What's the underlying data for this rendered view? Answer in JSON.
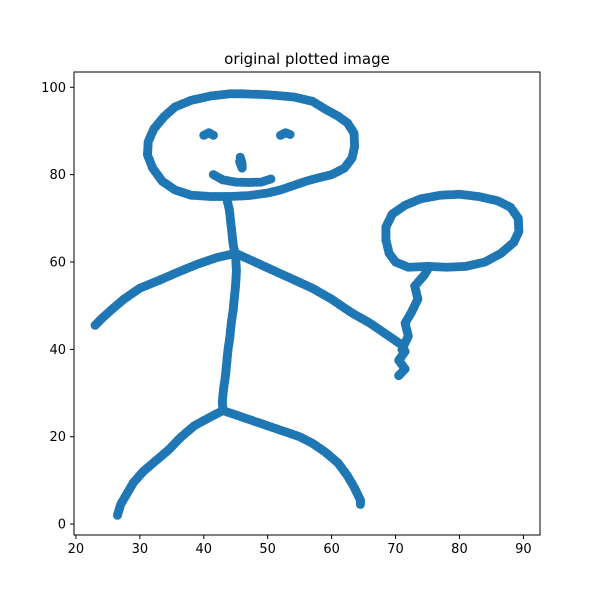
{
  "chart_data": {
    "type": "scatter",
    "title": "original plotted image",
    "xlabel": "",
    "ylabel": "",
    "xlim": [
      19.7,
      92.6
    ],
    "ylim": [
      -2.5,
      103.5
    ],
    "xticks": [
      20,
      30,
      40,
      50,
      60,
      70,
      80,
      90
    ],
    "yticks": [
      0,
      20,
      40,
      60,
      80,
      100
    ],
    "grid": false,
    "marker_color": "#1f77b4",
    "series": [
      {
        "strokes": [
          {
            "part": "head",
            "points": [
              [
                46,
                98.5
              ],
              [
                50,
                98.3
              ],
              [
                54,
                97.8
              ],
              [
                57,
                96.8
              ],
              [
                59,
                95
              ],
              [
                61,
                93.4
              ],
              [
                62.5,
                91.8
              ],
              [
                63.5,
                89.5
              ],
              [
                63.6,
                86.5
              ],
              [
                63.2,
                83.8
              ],
              [
                62,
                81.5
              ],
              [
                60,
                80
              ],
              [
                58,
                79.3
              ],
              [
                56,
                78.5
              ],
              [
                54,
                77.5
              ],
              [
                52,
                76.5
              ],
              [
                50,
                75.8
              ],
              [
                47,
                75.2
              ],
              [
                44,
                75
              ],
              [
                41,
                75
              ],
              [
                38,
                75.3
              ],
              [
                35.5,
                76.5
              ],
              [
                33.5,
                78.5
              ],
              [
                32,
                81.5
              ],
              [
                31.2,
                84.5
              ],
              [
                31.3,
                87.5
              ],
              [
                32.2,
                90.5
              ],
              [
                33.8,
                93.3
              ],
              [
                35.5,
                95.5
              ],
              [
                38,
                97
              ],
              [
                41,
                98
              ],
              [
                44,
                98.5
              ],
              [
                46,
                98.5
              ]
            ]
          },
          {
            "part": "left-eye",
            "points": [
              [
                40,
                89
              ],
              [
                40.8,
                89.6
              ],
              [
                41.5,
                89
              ]
            ]
          },
          {
            "part": "right-eye",
            "points": [
              [
                52,
                89
              ],
              [
                52.8,
                89.6
              ],
              [
                53.5,
                89.2
              ]
            ]
          },
          {
            "part": "nose",
            "points": [
              [
                45.7,
                84
              ],
              [
                46,
                82.5
              ],
              [
                46,
                81.5
              ],
              [
                45.6,
                83
              ]
            ]
          },
          {
            "part": "mouth",
            "points": [
              [
                41.5,
                80
              ],
              [
                43,
                78.8
              ],
              [
                45,
                78.3
              ],
              [
                47,
                78.2
              ],
              [
                49,
                78.3
              ],
              [
                50.5,
                79
              ]
            ]
          },
          {
            "part": "neck-and-torso",
            "points": [
              [
                43.5,
                75
              ],
              [
                44,
                72
              ],
              [
                44.3,
                68
              ],
              [
                44.6,
                64
              ],
              [
                45,
                61
              ],
              [
                45.1,
                58
              ],
              [
                45,
                55
              ],
              [
                44.8,
                52
              ],
              [
                44.6,
                49
              ],
              [
                44.3,
                46
              ],
              [
                44.1,
                43
              ],
              [
                43.8,
                40
              ],
              [
                43.6,
                37
              ],
              [
                43.4,
                34
              ],
              [
                43.1,
                31
              ],
              [
                42.9,
                28
              ],
              [
                43,
                26
              ]
            ]
          },
          {
            "part": "left-arm",
            "points": [
              [
                45,
                62
              ],
              [
                42,
                61
              ],
              [
                39,
                59.5
              ],
              [
                36,
                57.7
              ],
              [
                33,
                55.8
              ],
              [
                30,
                54
              ],
              [
                27.5,
                51.5
              ],
              [
                25.5,
                49
              ],
              [
                24,
                47
              ],
              [
                23,
                45.5
              ]
            ]
          },
          {
            "part": "right-arm",
            "points": [
              [
                45,
                62
              ],
              [
                48,
                60
              ],
              [
                51,
                58
              ],
              [
                54,
                56
              ],
              [
                57,
                54
              ],
              [
                60,
                51.5
              ],
              [
                63,
                48.5
              ],
              [
                66,
                46
              ],
              [
                68.5,
                43.5
              ],
              [
                71,
                41
              ],
              [
                71.5,
                39.5
              ],
              [
                70.5,
                37.5
              ],
              [
                71.5,
                35.5
              ],
              [
                70.5,
                34
              ]
            ]
          },
          {
            "part": "balloon-string",
            "points": [
              [
                71,
                40
              ],
              [
                72,
                43
              ],
              [
                71.5,
                46
              ],
              [
                72.5,
                48.5
              ],
              [
                73.5,
                51.5
              ],
              [
                73,
                54.5
              ],
              [
                74.5,
                57
              ],
              [
                75.3,
                59
              ]
            ]
          },
          {
            "part": "balloon",
            "points": [
              [
                75,
                59
              ],
              [
                72,
                58.8
              ],
              [
                70,
                60
              ],
              [
                69,
                62
              ],
              [
                68.5,
                65
              ],
              [
                68.5,
                68
              ],
              [
                69.5,
                71
              ],
              [
                71.5,
                73
              ],
              [
                74,
                74.5
              ],
              [
                77,
                75.3
              ],
              [
                80,
                75.5
              ],
              [
                83,
                75
              ],
              [
                86,
                74
              ],
              [
                88,
                72.5
              ],
              [
                89.2,
                70
              ],
              [
                89.3,
                67
              ],
              [
                88.5,
                64.5
              ],
              [
                86.5,
                62
              ],
              [
                84,
                60
              ],
              [
                81,
                59
              ],
              [
                78,
                58.8
              ],
              [
                75,
                59
              ]
            ]
          },
          {
            "part": "left-leg",
            "points": [
              [
                43,
                26
              ],
              [
                41,
                24.5
              ],
              [
                38.5,
                22.5
              ],
              [
                36.5,
                20
              ],
              [
                34.5,
                17
              ],
              [
                32.5,
                14.5
              ],
              [
                30.5,
                12
              ],
              [
                29,
                9.5
              ],
              [
                28,
                7
              ],
              [
                27,
                4.5
              ],
              [
                26.5,
                2
              ]
            ]
          },
          {
            "part": "right-leg",
            "points": [
              [
                43,
                26
              ],
              [
                46,
                24.5
              ],
              [
                49,
                23
              ],
              [
                52,
                21.5
              ],
              [
                55,
                20
              ],
              [
                57,
                18.5
              ],
              [
                59,
                16.5
              ],
              [
                61,
                14
              ],
              [
                62.5,
                11
              ],
              [
                63.5,
                8.5
              ],
              [
                64.5,
                5.5
              ],
              [
                64.5,
                4.5
              ]
            ]
          }
        ]
      }
    ]
  }
}
